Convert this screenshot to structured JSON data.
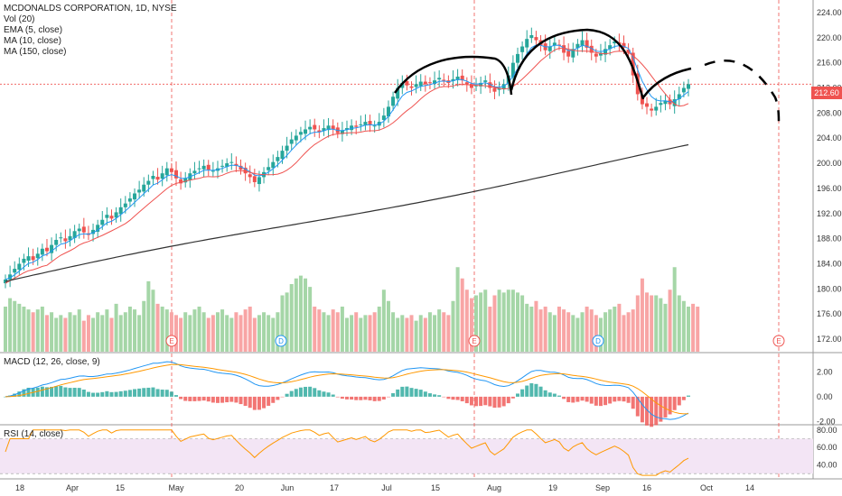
{
  "legend": {
    "title": "MCDONALDS CORPORATION, 1D, NYSE",
    "lines": [
      "Vol (20)",
      "EMA (5, close)",
      "MA (10, close)",
      "MA (150, close)"
    ]
  },
  "macd_legend": "MACD (12, 26, close, 9)",
  "rsi_legend": "RSI (14, close)",
  "last_price": "212.60",
  "colors": {
    "up": "#26a69a",
    "down": "#ef5350",
    "vol_up": "#a5d6a7",
    "vol_down": "#f8a5a5",
    "ema": "#2196f3",
    "ma10": "#ef5350",
    "ma150": "#333333",
    "macd": "#2196f3",
    "signal": "#ff9800",
    "rsi": "#ff9800",
    "rsi_band": "#f3e5f5"
  },
  "chart_data": [
    {
      "type": "candlestick",
      "title": "MCDONALDS CORPORATION, 1D, NYSE",
      "x_ticks": [
        "18",
        "Apr",
        "15",
        "May",
        "20",
        "Jun",
        "17",
        "Jul",
        "15",
        "Aug",
        "19",
        "Sep",
        "16",
        "Oct",
        "14"
      ],
      "y_ticks": [
        "224.00",
        "220.00",
        "216.00",
        "212.00",
        "208.00",
        "204.00",
        "200.00",
        "196.00",
        "192.00",
        "188.00",
        "184.00",
        "180.00",
        "176.00",
        "172.00"
      ],
      "ylim": [
        170,
        226
      ],
      "closes": [
        181.5,
        182.3,
        183.2,
        184.0,
        184.8,
        185.2,
        184.6,
        185.6,
        186.4,
        186.0,
        187.0,
        187.8,
        188.2,
        187.6,
        188.4,
        189.2,
        189.6,
        189.0,
        188.6,
        189.4,
        190.2,
        191.0,
        191.8,
        191.2,
        192.2,
        193.0,
        193.6,
        194.4,
        195.2,
        195.8,
        196.6,
        197.2,
        198.0,
        197.4,
        198.4,
        199.2,
        198.6,
        197.6,
        196.8,
        197.6,
        198.4,
        198.8,
        199.2,
        199.6,
        199.0,
        198.8,
        199.2,
        199.6,
        200.0,
        200.2,
        199.6,
        199.0,
        198.4,
        197.8,
        197.0,
        197.8,
        198.6,
        199.4,
        200.2,
        201.0,
        202.0,
        202.8,
        203.8,
        204.4,
        205.0,
        205.4,
        205.8,
        205.4,
        205.0,
        205.6,
        206.0,
        205.4,
        204.8,
        205.2,
        205.6,
        206.0,
        205.8,
        206.2,
        206.6,
        206.2,
        206.0,
        206.6,
        207.6,
        209.0,
        210.6,
        212.0,
        212.8,
        212.4,
        212.0,
        212.6,
        213.0,
        212.6,
        212.8,
        213.2,
        213.6,
        213.2,
        212.8,
        213.4,
        213.8,
        213.2,
        212.6,
        212.0,
        212.4,
        212.8,
        213.2,
        212.0,
        211.4,
        212.0,
        212.6,
        214.0,
        216.0,
        217.4,
        218.6,
        219.8,
        220.4,
        219.6,
        218.8,
        218.0,
        218.6,
        219.2,
        218.8,
        217.6,
        217.0,
        218.2,
        219.0,
        219.6,
        218.4,
        217.6,
        217.0,
        217.6,
        218.2,
        218.8,
        219.4,
        219.0,
        218.4,
        217.6,
        214.0,
        211.0,
        209.4,
        209.0,
        208.4,
        209.0,
        209.6,
        210.0,
        209.4,
        210.2,
        211.0,
        212.0,
        212.6
      ],
      "volumes": [
        1.6,
        1.9,
        1.8,
        1.7,
        1.6,
        1.5,
        1.4,
        1.5,
        1.6,
        1.3,
        1.4,
        1.2,
        1.3,
        1.2,
        1.4,
        1.3,
        1.5,
        1.1,
        1.3,
        1.2,
        1.4,
        1.3,
        1.5,
        1.2,
        1.7,
        1.3,
        1.4,
        1.6,
        1.5,
        1.3,
        1.8,
        2.5,
        2.2,
        1.7,
        1.6,
        1.5,
        1.4,
        1.3,
        1.2,
        1.4,
        1.3,
        1.5,
        1.6,
        1.4,
        1.2,
        1.3,
        1.4,
        1.5,
        1.3,
        1.2,
        1.4,
        1.3,
        1.5,
        1.6,
        1.2,
        1.3,
        1.4,
        1.3,
        1.2,
        1.4,
        2.0,
        2.1,
        2.4,
        2.6,
        2.7,
        2.6,
        2.3,
        1.6,
        1.5,
        1.4,
        1.3,
        1.5,
        1.4,
        1.6,
        1.2,
        1.3,
        1.4,
        1.2,
        1.3,
        1.3,
        1.4,
        1.6,
        2.2,
        1.8,
        1.4,
        1.2,
        1.3,
        1.2,
        1.3,
        1.1,
        1.3,
        1.2,
        1.4,
        1.3,
        1.5,
        1.4,
        1.3,
        1.8,
        3.0,
        2.6,
        2.2,
        1.9,
        2.0,
        2.1,
        2.2,
        1.6,
        2.0,
        2.2,
        2.1,
        2.2,
        2.2,
        2.1,
        2.0,
        1.7,
        1.6,
        1.8,
        1.5,
        1.6,
        1.4,
        1.3,
        1.6,
        1.5,
        1.4,
        1.3,
        1.2,
        1.4,
        1.6,
        1.5,
        1.3,
        1.2,
        1.4,
        1.5,
        1.6,
        1.7,
        1.3,
        1.4,
        1.5,
        2.0,
        2.6,
        2.1,
        2.0,
        2.0,
        1.9,
        1.7,
        2.2,
        3.0,
        2.0,
        1.8,
        1.6,
        1.7,
        1.6
      ]
    },
    {
      "type": "line",
      "title": "MACD (12, 26, close, 9)",
      "y_ticks": [
        "2.00",
        "0.00",
        "-2.00"
      ],
      "ylim": [
        -2.2,
        3.5
      ]
    },
    {
      "type": "line",
      "title": "RSI (14, close)",
      "y_ticks": [
        "80.00",
        "60.00",
        "40.00"
      ],
      "ylim": [
        25,
        85
      ]
    }
  ]
}
